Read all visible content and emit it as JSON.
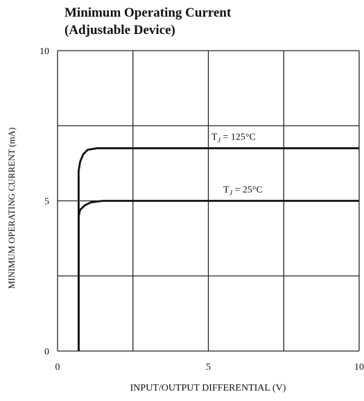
{
  "chart_data": {
    "type": "line",
    "title": "Minimum Operating Current",
    "subtitle": "(Adjustable Device)",
    "xlabel": "INPUT/OUTPUT DIFFERENTIAL (V)",
    "ylabel": "MINIMUM OPERATING CURRENT (mA)",
    "xlim": [
      0,
      10
    ],
    "ylim": [
      0,
      10
    ],
    "xticks": [
      "0",
      "5",
      "10"
    ],
    "yticks": [
      "0",
      "5",
      "10"
    ],
    "grid": true,
    "series": [
      {
        "name": "T_J = 125°C",
        "label_main": "T",
        "label_sub": "J",
        "label_rest": " = 125°C",
        "x": [
          0.7,
          0.7,
          0.75,
          0.85,
          1.0,
          1.3,
          10
        ],
        "y": [
          0,
          6.0,
          6.3,
          6.55,
          6.7,
          6.75,
          6.75
        ]
      },
      {
        "name": "T_J = 25°C",
        "label_main": "T",
        "label_sub": "J",
        "label_rest": " = 25°C",
        "x": [
          0.7,
          0.7,
          0.75,
          0.9,
          1.1,
          1.5,
          10
        ],
        "y": [
          0,
          4.5,
          4.7,
          4.85,
          4.95,
          5.0,
          5.0
        ]
      }
    ]
  }
}
